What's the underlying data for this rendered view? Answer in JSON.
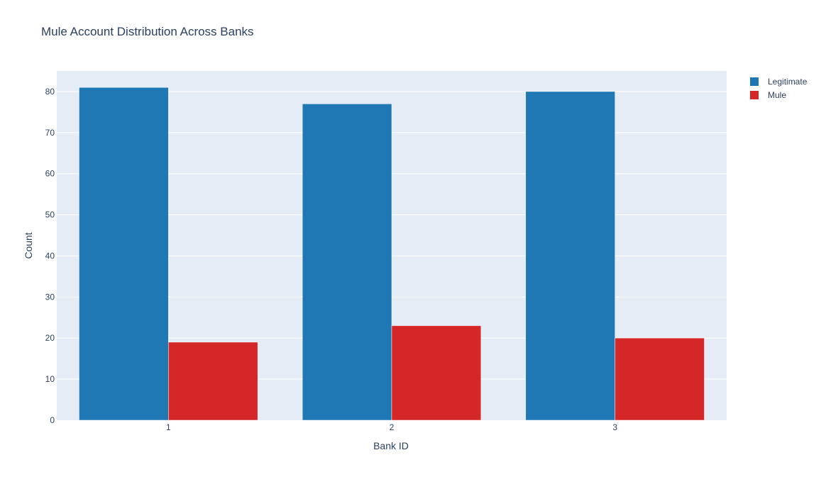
{
  "chart_data": {
    "type": "bar",
    "title": "Mule Account Distribution Across Banks",
    "xlabel": "Bank ID",
    "ylabel": "Count",
    "categories": [
      "1",
      "2",
      "3"
    ],
    "series": [
      {
        "name": "Legitimate",
        "values": [
          81,
          77,
          80
        ],
        "color": "#1f77b4"
      },
      {
        "name": "Mule",
        "values": [
          19,
          23,
          20
        ],
        "color": "#d62728"
      }
    ],
    "ylim": [
      0,
      85
    ],
    "yticks": [
      0,
      10,
      20,
      30,
      40,
      50,
      60,
      70,
      80
    ],
    "grid": true,
    "legend_position": "top-right",
    "plot_background": "#e5ecf6"
  }
}
